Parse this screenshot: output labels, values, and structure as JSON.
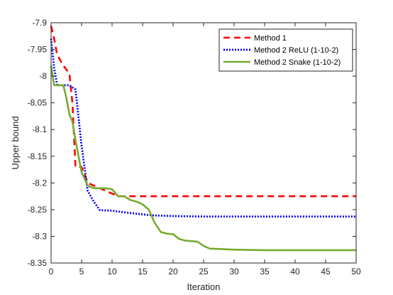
{
  "chart_data": {
    "type": "line",
    "title": "",
    "xlabel": "Iteration",
    "ylabel": "Upper bound",
    "xlim": [
      0,
      50
    ],
    "ylim": [
      -8.35,
      -7.9
    ],
    "xticks": [
      0,
      5,
      10,
      15,
      20,
      25,
      30,
      35,
      40,
      45,
      50
    ],
    "xtick_labels": [
      "0",
      "5",
      "10",
      "15",
      "20",
      "25",
      "30",
      "35",
      "40",
      "45",
      "50"
    ],
    "yticks": [
      -7.9,
      -7.95,
      -8.0,
      -8.05,
      -8.1,
      -8.15,
      -8.2,
      -8.25,
      -8.3,
      -8.35
    ],
    "ytick_labels": [
      "-7.9",
      "-7.95",
      "-8",
      "-8.05",
      "-8.1",
      "-8.15",
      "-8.2",
      "-8.25",
      "-8.3",
      "-8.35"
    ],
    "grid": false,
    "legend_position": "top-right",
    "series": [
      {
        "name": "Method 1",
        "color": "#ff0000",
        "style": "dashed",
        "x": [
          0,
          0.5,
          1,
          2,
          3,
          3.5,
          4,
          5,
          6,
          7,
          8,
          9,
          10,
          11,
          12,
          50
        ],
        "y": [
          -7.906,
          -7.93,
          -7.96,
          -7.98,
          -7.995,
          -8.05,
          -8.17,
          -8.17,
          -8.2,
          -8.205,
          -8.21,
          -8.215,
          -8.22,
          -8.225,
          -8.225,
          -8.225
        ]
      },
      {
        "name": "Method 2 ReLU (1-10-2)",
        "color": "#0000ff",
        "style": "dotted",
        "x": [
          0,
          0.5,
          1,
          2,
          3,
          4,
          5,
          6,
          7,
          8,
          10,
          12,
          15,
          17,
          20,
          25,
          30,
          40,
          50
        ],
        "y": [
          -7.93,
          -7.985,
          -8.017,
          -8.017,
          -8.017,
          -8.025,
          -8.13,
          -8.215,
          -8.235,
          -8.251,
          -8.252,
          -8.255,
          -8.259,
          -8.261,
          -8.262,
          -8.263,
          -8.263,
          -8.263,
          -8.263
        ]
      },
      {
        "name": "Method 2 Snake (1-10-2)",
        "color": "#77ac30",
        "style": "solid",
        "x": [
          0,
          0.5,
          1,
          2,
          2.5,
          3,
          3.5,
          4,
          5,
          6,
          7,
          8,
          9,
          10,
          11,
          12,
          13,
          14,
          15,
          16,
          17,
          18,
          19,
          20,
          21,
          22,
          24,
          25,
          26,
          28,
          30,
          35,
          40,
          45,
          50
        ],
        "y": [
          -7.98,
          -8.017,
          -8.017,
          -8.017,
          -8.04,
          -8.072,
          -8.085,
          -8.12,
          -8.18,
          -8.205,
          -8.21,
          -8.21,
          -8.21,
          -8.212,
          -8.225,
          -8.225,
          -8.232,
          -8.235,
          -8.24,
          -8.25,
          -8.275,
          -8.292,
          -8.295,
          -8.296,
          -8.305,
          -8.308,
          -8.31,
          -8.318,
          -8.323,
          -8.324,
          -8.325,
          -8.326,
          -8.326,
          -8.326,
          -8.326
        ]
      }
    ]
  }
}
